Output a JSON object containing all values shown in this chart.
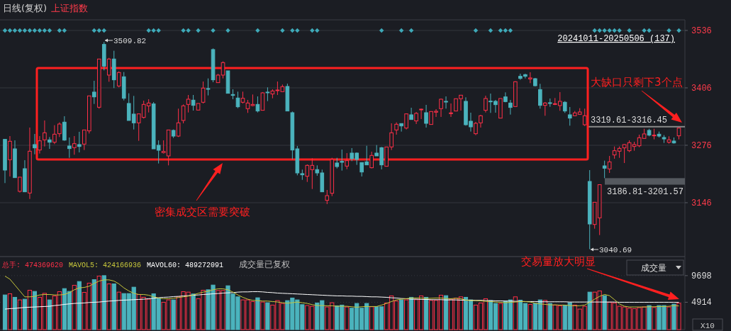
{
  "chart_data": [
    {
      "type": "candlestick",
      "title": "日线(复权)",
      "subtitle": "上证指数",
      "categories": [
        null,
        null,
        null,
        null,
        null,
        null,
        null,
        null,
        null,
        null,
        null,
        null,
        null,
        null,
        null,
        null,
        null,
        null,
        null,
        null,
        null,
        null,
        null,
        null,
        null,
        null,
        null,
        null,
        null,
        null,
        null,
        null,
        null,
        null,
        null,
        null,
        null,
        null,
        null,
        null,
        null,
        null,
        null,
        null,
        null,
        null,
        null,
        null,
        null,
        null,
        null,
        null,
        null,
        null,
        null,
        null,
        null,
        null,
        null,
        null,
        null,
        null,
        null,
        null,
        null,
        null,
        null,
        null,
        null,
        null,
        null,
        null,
        null,
        null,
        null,
        null,
        null,
        null,
        null,
        null,
        null,
        null,
        null,
        null,
        null,
        null,
        null,
        null,
        null,
        null,
        null,
        null,
        null,
        null,
        null,
        null,
        null,
        null,
        null,
        null,
        null,
        null,
        null,
        null,
        null,
        null,
        null,
        null,
        null,
        null,
        null,
        null,
        null,
        null,
        null,
        null,
        null,
        null,
        null,
        null,
        null,
        null,
        null,
        null,
        null,
        null,
        null,
        null,
        null,
        null,
        null,
        null,
        null,
        null,
        null,
        null,
        null
      ],
      "ohlc": [
        [
          3289.4,
          3289.4,
          3190.4,
          3219.8
        ],
        [
          3243.3,
          3296.8,
          3205.4,
          3285.1
        ],
        [
          3267.9,
          3287.2,
          3202.7,
          3202.7
        ],
        [
          3171.7,
          3203.8,
          3169.0,
          3203.8
        ],
        [
          3223.0,
          3242.3,
          3170.6,
          3170.6
        ],
        [
          3167.9,
          3316.1,
          3154.5,
          3262.6
        ],
        [
          3277.6,
          3301.7,
          3255.6,
          3270.1
        ],
        [
          3265.3,
          3296.8,
          3257.3,
          3286.1
        ],
        [
          3288.3,
          3332.2,
          3273.3,
          3304.3
        ],
        [
          3288.3,
          3294.7,
          3267.9,
          3282.9
        ],
        [
          3282.9,
          3321.5,
          3278.7,
          3301.1
        ],
        [
          3302.2,
          3327.9,
          3294.7,
          3324.1
        ],
        [
          3328.4,
          3341.8,
          3286.1,
          3287.7
        ],
        [
          3274.4,
          3293.6,
          3247.6,
          3268.5
        ],
        [
          3270.6,
          3296.8,
          3254.6,
          3279.7
        ],
        [
          3277.6,
          3306.5,
          3259.9,
          3273.3
        ],
        [
          3278.7,
          3310.7,
          3265.3,
          3310.7
        ],
        [
          3308.6,
          3387.8,
          3302.7,
          3387.8
        ],
        [
          3396.4,
          3422.0,
          3369.6,
          3385.6
        ],
        [
          3362.1,
          3471.3,
          3358.9,
          3471.3
        ],
        [
          3504.4,
          3509.82,
          3445.6,
          3455.2
        ],
        [
          3434.9,
          3473.9,
          3419.9,
          3471.3
        ],
        [
          3471.3,
          3490.0,
          3405.5,
          3424.2
        ],
        [
          3410.3,
          3443.4,
          3407.1,
          3440.8
        ],
        [
          3431.1,
          3441.8,
          3377.6,
          3382.4
        ],
        [
          3370.7,
          3393.7,
          3332.2,
          3332.2
        ],
        [
          3346.6,
          3387.8,
          3311.8,
          3326.8
        ],
        [
          3326.8,
          3347.1,
          3286.1,
          3347.1
        ],
        [
          3339.1,
          3377.1,
          3336.4,
          3368.5
        ],
        [
          3365.3,
          3380.3,
          3350.3,
          3371.7
        ],
        [
          3369.6,
          3373.9,
          3267.9,
          3267.9
        ],
        [
          3276.0,
          3287.2,
          3234.8,
          3264.7
        ],
        [
          3259.4,
          3287.2,
          3257.3,
          3262.1
        ],
        [
          3251.9,
          3310.7,
          3230.5,
          3310.7
        ],
        [
          3309.7,
          3311.8,
          3292.6,
          3296.8
        ],
        [
          3296.8,
          3358.9,
          3294.7,
          3326.8
        ],
        [
          3332.2,
          3368.5,
          3325.7,
          3365.3
        ],
        [
          3368.5,
          3389.9,
          3350.3,
          3380.3
        ],
        [
          3378.2,
          3389.9,
          3354.6,
          3366.4
        ],
        [
          3355.7,
          3370.7,
          3355.7,
          3370.7
        ],
        [
          3373.4,
          3420.4,
          3370.7,
          3405.5
        ],
        [
          3404.4,
          3427.4,
          3388.9,
          3402.8
        ],
        [
          3492.7,
          3495.3,
          3418.8,
          3424.2
        ],
        [
          3417.8,
          3437.5,
          3417.8,
          3434.9
        ],
        [
          3434.9,
          3465.9,
          3427.4,
          3463.2
        ],
        [
          3444.5,
          3444.5,
          3393.7,
          3393.7
        ],
        [
          3391.0,
          3402.8,
          3380.3,
          3388.9
        ],
        [
          3383.0,
          3397.4,
          3360.0,
          3363.2
        ],
        [
          3373.4,
          3397.4,
          3370.7,
          3382.4
        ],
        [
          3358.9,
          3378.7,
          3349.3,
          3371.7
        ],
        [
          3365.9,
          3391.0,
          3364.3,
          3368.5
        ],
        [
          3368.5,
          3386.7,
          3350.3,
          3353.6
        ],
        [
          3355.2,
          3396.4,
          3355.2,
          3394.7
        ],
        [
          3396.4,
          3407.1,
          3376.0,
          3395.3
        ],
        [
          3392.1,
          3402.8,
          3382.4,
          3399.0
        ],
        [
          3400.1,
          3420.4,
          3389.9,
          3401.2
        ],
        [
          3397.4,
          3413.5,
          3397.4,
          3408.7
        ],
        [
          3409.2,
          3415.6,
          3353.6,
          3353.6
        ],
        [
          3349.8,
          3352.5,
          3243.9,
          3265.3
        ],
        [
          3267.9,
          3274.4,
          3208.0,
          3213.4
        ],
        [
          3211.8,
          3220.9,
          3197.7,
          3209.1
        ],
        [
          3205.9,
          3232.6,
          3193.0,
          3230.5
        ],
        [
          3220.9,
          3246.5,
          3177.0,
          3230.5
        ],
        [
          3220.9,
          3230.5,
          3207.0,
          3213.4
        ],
        [
          3213.4,
          3220.9,
          3170.6,
          3170.6
        ],
        [
          3151.3,
          3174.9,
          3142.8,
          3162.0
        ],
        [
          3167.4,
          3247.6,
          3161.0,
          3243.9
        ],
        [
          3235.9,
          3247.6,
          3223.6,
          3227.8
        ],
        [
          3239.6,
          3266.3,
          3218.7,
          3237.5
        ],
        [
          3228.9,
          3258.3,
          3221.9,
          3241.2
        ],
        [
          3258.3,
          3269.6,
          3240.1,
          3245.5
        ],
        [
          3258.3,
          3259.9,
          3231.6,
          3243.9
        ],
        [
          3236.9,
          3236.9,
          3205.4,
          3215.5
        ],
        [
          3238.5,
          3274.9,
          3231.6,
          3231.6
        ],
        [
          3225.2,
          3261.5,
          3223.6,
          3253.0
        ],
        [
          3258.3,
          3276.5,
          3251.9,
          3251.9
        ],
        [
          3270.6,
          3272.2,
          3221.4,
          3231.6
        ],
        [
          3228.4,
          3272.2,
          3228.4,
          3272.2
        ],
        [
          3272.2,
          3325.7,
          3265.3,
          3304.3
        ],
        [
          3310.7,
          3327.9,
          3300.0,
          3323.6
        ],
        [
          3325.2,
          3325.2,
          3307.0,
          3319.8
        ],
        [
          3315.0,
          3348.2,
          3311.8,
          3347.1
        ],
        [
          3345.0,
          3361.0,
          3334.3,
          3334.3
        ],
        [
          3331.1,
          3351.4,
          3324.1,
          3348.2
        ],
        [
          3356.8,
          3358.9,
          3335.4,
          3357.8
        ],
        [
          3349.8,
          3367.5,
          3316.1,
          3325.7
        ],
        [
          3323.1,
          3352.5,
          3323.1,
          3352.5
        ],
        [
          3350.9,
          3357.8,
          3340.2,
          3353.0
        ],
        [
          3358.9,
          3381.9,
          3340.2,
          3380.3
        ],
        [
          3375.5,
          3386.7,
          3358.9,
          3374.4
        ],
        [
          3347.7,
          3370.7,
          3340.2,
          3349.3
        ],
        [
          3353.6,
          3381.4,
          3353.6,
          3381.4
        ],
        [
          3381.4,
          3389.4,
          3354.6,
          3389.4
        ],
        [
          3375.5,
          3384.6,
          3320.4,
          3322.5
        ],
        [
          3330.5,
          3349.8,
          3307.0,
          3317.7
        ],
        [
          3302.2,
          3329.0,
          3299.0,
          3325.7
        ],
        [
          3326.8,
          3345.0,
          3316.1,
          3342.9
        ],
        [
          3355.2,
          3388.3,
          3350.3,
          3381.9
        ],
        [
          3376.0,
          3393.1,
          3349.3,
          3374.4
        ],
        [
          3375.5,
          3378.7,
          3349.8,
          3368.0
        ],
        [
          3337.5,
          3381.9,
          3337.5,
          3381.9
        ],
        [
          3385.6,
          3395.8,
          3373.4,
          3374.9
        ],
        [
          3371.7,
          3378.7,
          3345.5,
          3361.6
        ],
        [
          3363.7,
          3420.9,
          3363.7,
          3419.9
        ],
        [
          3432.2,
          3438.1,
          3424.2,
          3427.4
        ],
        [
          3435.9,
          3438.1,
          3427.4,
          3432.2
        ],
        [
          3426.3,
          3441.3,
          3416.7,
          3428.5
        ],
        [
          3426.8,
          3428.5,
          3409.2,
          3410.8
        ],
        [
          3402.2,
          3415.1,
          3358.9,
          3366.4
        ],
        [
          3366.4,
          3373.9,
          3342.8,
          3371.7
        ],
        [
          3372.3,
          3381.9,
          3363.2,
          3370.7
        ],
        [
          3368.5,
          3383.0,
          3367.0,
          3370.1
        ],
        [
          3365.9,
          3396.4,
          3354.1,
          3375.5
        ],
        [
          3373.4,
          3376.0,
          3349.3,
          3353.6
        ],
        [
          3345.0,
          3362.6,
          3320.4,
          3337.5
        ],
        [
          3342.9,
          3353.6,
          3341.8,
          3349.3
        ],
        [
          3346.1,
          3360.0,
          3345.0,
          3351.4
        ],
        [
          3322.5,
          3358.9,
          3319.61,
          3342.9
        ],
        [
          3194.1,
          3219.8,
          3040.69,
          3097.8
        ],
        [
          3096.7,
          3147.0,
          3087.1,
          3147.0
        ],
        [
          3111.7,
          3186.81,
          3072.7,
          3186.81
        ],
        [
          3229.4,
          3241.2,
          3201.57,
          3224.1
        ],
        [
          3222.5,
          3251.9,
          3213.4,
          3238.5
        ],
        [
          3254.1,
          3273.3,
          3245.5,
          3263.7
        ],
        [
          3262.6,
          3273.3,
          3247.6,
          3269.0
        ],
        [
          3270.1,
          3278.7,
          3235.8,
          3277.6
        ],
        [
          3263.7,
          3287.2,
          3260.5,
          3281.9
        ],
        [
          3273.3,
          3284.0,
          3263.7,
          3277.6
        ],
        [
          3274.9,
          3300.0,
          3271.7,
          3293.1
        ],
        [
          3291.5,
          3313.4,
          3291.5,
          3301.7
        ],
        [
          3309.7,
          3313.4,
          3296.3,
          3299.0
        ],
        [
          3297.9,
          3313.4,
          3289.4,
          3299.0
        ],
        [
          3301.1,
          3307.0,
          3293.6,
          3296.8
        ],
        [
          3293.6,
          3299.0,
          3281.3,
          3290.4
        ],
        [
          3282.9,
          3296.3,
          3279.7,
          3288.3
        ],
        [
          3285.6,
          3293.6,
          3279.7,
          3281.3
        ],
        [
          3297.4,
          3316.45,
          3289.4,
          3315.0
        ]
      ],
      "colors": [
        "#4bb3bd",
        "#ff3048",
        "#4bb3bd",
        "#ff3048",
        "#4bb3bd",
        "#ff3048",
        "#4bb3bd",
        "#ff3048",
        "#ff3048",
        "#4bb3bd",
        "#ff3048",
        "#ff3048",
        "#4bb3bd",
        "#4bb3bd",
        "#ff3048",
        "#4bb3bd",
        "#ff3048",
        "#ff3048",
        "#4bb3bd",
        "#ff3048",
        "#4bb3bd",
        "#ff3048",
        "#4bb3bd",
        "#ff3048",
        "#4bb3bd",
        "#4bb3bd",
        "#4bb3bd",
        "#ff3048",
        "#ff3048",
        "#ff3048",
        "#4bb3bd",
        "#4bb3bd",
        "#ff3048",
        "#ff3048",
        "#4bb3bd",
        "#ff3048",
        "#ff3048",
        "#ff3048",
        "#4bb3bd",
        "#ff3048",
        "#ff3048",
        "#4bb3bd",
        "#4bb3bd",
        "#ff3048",
        "#ff3048",
        "#4bb3bd",
        "#4bb3bd",
        "#4bb3bd",
        "#ff3048",
        "#ff3048",
        "#ff3048",
        "#4bb3bd",
        "#ff3048",
        "#4bb3bd",
        "#ff3048",
        "#ff3048",
        "#ff3048",
        "#4bb3bd",
        "#4bb3bd",
        "#4bb3bd",
        "#4bb3bd",
        "#ff3048",
        "#ff3048",
        "#4bb3bd",
        "#4bb3bd",
        "#ff3048",
        "#ff3048",
        "#4bb3bd",
        "#4bb3bd",
        "#ff3048",
        "#4bb3bd",
        "#4bb3bd",
        "#4bb3bd",
        "#4bb3bd",
        "#ff3048",
        "#4bb3bd",
        "#4bb3bd",
        "#ff3048",
        "#ff3048",
        "#ff3048",
        "#4bb3bd",
        "#ff3048",
        "#4bb3bd",
        "#ff3048",
        "#ff3048",
        "#4bb3bd",
        "#ff3048",
        "#ff3048",
        "#ff3048",
        "#4bb3bd",
        "#ff3048",
        "#ff3048",
        "#ff3048",
        "#4bb3bd",
        "#4bb3bd",
        "#ff3048",
        "#ff3048",
        "#ff3048",
        "#4bb3bd",
        "#4bb3bd",
        "#ff3048",
        "#4bb3bd",
        "#4bb3bd",
        "#ff3048",
        "#4bb3bd",
        "#4bb3bd",
        "#ff3048",
        "#4bb3bd",
        "#4bb3bd",
        "#ff3048",
        "#4bb3bd",
        "#ff3048",
        "#ff3048",
        "#4bb3bd",
        "#4bb3bd",
        "#ff3048",
        "#ff3048",
        "#ff3048",
        "#4bb3bd",
        "#ff3048",
        "#ff3048",
        "#4bb3bd",
        "#ff3048",
        "#ff3048",
        "#ff3048",
        "#ff3048",
        "#ff3048",
        "#ff3048",
        "#ff3048",
        "#ff3048",
        "#4bb3bd",
        "#ff3048",
        "#4bb3bd",
        "#4bb3bd",
        "#ff3048",
        "#4bb3bd",
        "#ff3048"
      ],
      "ylim": [
        3024,
        3560
      ],
      "yticks": [
        3146,
        3276,
        3406,
        3536
      ],
      "grid": "y",
      "series": [
        {
          "type": "scatter",
          "marker": "diamond",
          "color": "#3ea9b8",
          "values": [
            3536,
            3536,
            3536,
            3536,
            3536,
            3536,
            3536,
            3536,
            3536,
            3536,
            null,
            3536,
            3536,
            null,
            null,
            null,
            null,
            null,
            3536,
            3536,
            3536,
            null,
            null,
            null,
            null,
            null,
            null,
            null,
            null,
            3536,
            3536,
            3536,
            null,
            null,
            null,
            null,
            3536,
            3536,
            null,
            3536,
            null,
            null,
            3536,
            null,
            null,
            3536,
            null,
            null,
            null,
            null,
            null,
            3536,
            null,
            null,
            null,
            null,
            3536,
            null,
            3536,
            3536,
            null,
            null,
            3536,
            3536,
            null,
            null,
            null,
            null,
            null,
            null,
            null,
            null,
            null,
            null,
            null,
            null,
            3536,
            null,
            null,
            null,
            3536,
            null,
            3536,
            null,
            null,
            null,
            null,
            null,
            null,
            null,
            null,
            null,
            null,
            null,
            null,
            3536,
            null,
            null,
            3536,
            null,
            3536,
            3536,
            3536,
            null,
            null,
            null,
            null,
            null,
            null,
            null,
            null,
            null,
            null,
            null,
            null,
            null,
            null,
            null,
            null,
            3536,
            3536,
            3536,
            3536,
            3536,
            3536,
            null,
            3536,
            null,
            null,
            3536,
            3536,
            null,
            null,
            null,
            3536,
            null,
            3536
          ]
        }
      ],
      "bands": [
        {
          "axis": "y",
          "from": 3316.45,
          "to": 3319.61,
          "label": "3319.61-3316.45",
          "color": "#8a8a8a"
        },
        {
          "axis": "y",
          "from": 3186.81,
          "to": 3201.57,
          "label": "3186.81-3201.57",
          "color": "#55595f"
        }
      ],
      "annotations": [
        "20241011-20250506 (137)",
        "大缺口只剩下3个点",
        "密集成交区需要突破",
        "3509.82",
        "3040.69"
      ]
    },
    {
      "type": "bar",
      "categories": [
        null,
        null,
        null,
        null,
        null,
        null,
        null,
        null,
        null,
        null,
        null,
        null,
        null,
        null,
        null,
        null,
        null,
        null,
        null,
        null,
        null,
        null,
        null,
        null,
        null,
        null,
        null,
        null,
        null,
        null,
        null,
        null,
        null,
        null,
        null,
        null,
        null,
        null,
        null,
        null,
        null,
        null,
        null,
        null,
        null,
        null,
        null,
        null,
        null,
        null,
        null,
        null,
        null,
        null,
        null,
        null,
        null,
        null,
        null,
        null,
        null,
        null,
        null,
        null,
        null,
        null,
        null,
        null,
        null,
        null,
        null,
        null,
        null,
        null,
        null,
        null,
        null,
        null,
        null,
        null,
        null,
        null,
        null,
        null,
        null,
        null,
        null,
        null,
        null,
        null,
        null,
        null,
        null,
        null,
        null,
        null,
        null,
        null,
        null,
        null,
        null,
        null,
        null,
        null,
        null,
        null,
        null,
        null,
        null,
        null,
        null,
        null,
        null,
        null,
        null,
        null,
        null,
        null,
        null,
        null,
        null,
        null,
        null,
        null,
        null,
        null,
        null,
        null,
        null,
        null,
        null,
        null,
        null,
        null,
        null,
        null,
        null
      ],
      "ylim": [
        0,
        13120
      ],
      "yticks": [
        4914,
        9698
      ],
      "grid": "y",
      "legend": "top left",
      "series": [
        {
          "name": "总手: 474369620",
          "color": "#ff3048",
          "colors": [
            "#4bb3bd",
            "#ff3048",
            "#4bb3bd",
            "#ff3048",
            "#4bb3bd",
            "#ff3048",
            "#4bb3bd",
            "#ff3048",
            "#ff3048",
            "#4bb3bd",
            "#ff3048",
            "#ff3048",
            "#4bb3bd",
            "#4bb3bd",
            "#ff3048",
            "#4bb3bd",
            "#ff3048",
            "#ff3048",
            "#4bb3bd",
            "#ff3048",
            "#4bb3bd",
            "#ff3048",
            "#4bb3bd",
            "#ff3048",
            "#4bb3bd",
            "#4bb3bd",
            "#4bb3bd",
            "#ff3048",
            "#ff3048",
            "#ff3048",
            "#4bb3bd",
            "#4bb3bd",
            "#ff3048",
            "#ff3048",
            "#4bb3bd",
            "#ff3048",
            "#ff3048",
            "#ff3048",
            "#4bb3bd",
            "#ff3048",
            "#ff3048",
            "#4bb3bd",
            "#4bb3bd",
            "#ff3048",
            "#ff3048",
            "#4bb3bd",
            "#4bb3bd",
            "#4bb3bd",
            "#ff3048",
            "#ff3048",
            "#ff3048",
            "#4bb3bd",
            "#ff3048",
            "#4bb3bd",
            "#ff3048",
            "#ff3048",
            "#ff3048",
            "#4bb3bd",
            "#4bb3bd",
            "#4bb3bd",
            "#4bb3bd",
            "#ff3048",
            "#ff3048",
            "#4bb3bd",
            "#4bb3bd",
            "#ff3048",
            "#ff3048",
            "#4bb3bd",
            "#4bb3bd",
            "#ff3048",
            "#4bb3bd",
            "#4bb3bd",
            "#4bb3bd",
            "#4bb3bd",
            "#ff3048",
            "#4bb3bd",
            "#4bb3bd",
            "#ff3048",
            "#ff3048",
            "#ff3048",
            "#4bb3bd",
            "#ff3048",
            "#4bb3bd",
            "#ff3048",
            "#ff3048",
            "#4bb3bd",
            "#ff3048",
            "#ff3048",
            "#ff3048",
            "#4bb3bd",
            "#ff3048",
            "#ff3048",
            "#ff3048",
            "#4bb3bd",
            "#4bb3bd",
            "#ff3048",
            "#ff3048",
            "#ff3048",
            "#4bb3bd",
            "#4bb3bd",
            "#ff3048",
            "#4bb3bd",
            "#4bb3bd",
            "#ff3048",
            "#4bb3bd",
            "#4bb3bd",
            "#ff3048",
            "#4bb3bd",
            "#4bb3bd",
            "#ff3048",
            "#4bb3bd",
            "#ff3048",
            "#ff3048",
            "#4bb3bd",
            "#4bb3bd",
            "#ff3048",
            "#ff3048",
            "#ff3048",
            "#4bb3bd",
            "#ff3048",
            "#ff3048",
            "#4bb3bd",
            "#ff3048",
            "#ff3048",
            "#ff3048",
            "#ff3048",
            "#ff3048",
            "#ff3048",
            "#ff3048",
            "#ff3048",
            "#4bb3bd",
            "#ff3048",
            "#4bb3bd",
            "#4bb3bd",
            "#ff3048",
            "#4bb3bd",
            "#ff3048"
          ],
          "values": [
            6224,
            6436,
            5801,
            5335,
            5462,
            7071,
            6859,
            5801,
            6520,
            5335,
            6055,
            6817,
            7367,
            6859,
            7960,
            8637,
            6690,
            8341,
            8976,
            9611,
            9696,
            8214,
            8214,
            6732,
            6478,
            6478,
            7621,
            6309,
            5801,
            5462,
            6436,
            5674,
            4911,
            5335,
            5335,
            5885,
            6817,
            6732,
            6393,
            5547,
            7071,
            7155,
            8002,
            7028,
            7028,
            7875,
            6393,
            5885,
            5335,
            5335,
            5038,
            5716,
            4954,
            4827,
            4403,
            5208,
            4700,
            5208,
            5674,
            5335,
            4488,
            4319,
            4192,
            4784,
            5208,
            4065,
            4827,
            4276,
            4403,
            4065,
            3853,
            4700,
            3853,
            4700,
            4107,
            4107,
            4107,
            4784,
            6055,
            5123,
            5335,
            5335,
            5801,
            5377,
            6055,
            5801,
            5250,
            5250,
            6182,
            6097,
            5462,
            5631,
            5885,
            5801,
            5335,
            4403,
            4784,
            5547,
            5208,
            4700,
            4700,
            5123,
            5335,
            5885,
            5293,
            4700,
            4530,
            4700,
            5335,
            5250,
            4700,
            4403,
            4276,
            4361,
            4827,
            4403,
            3684,
            4192,
            6732,
            6732,
            6944,
            6097,
            4911,
            4784,
            4192,
            4065,
            3853,
            3768,
            3938,
            4065,
            4319,
            3980,
            4319,
            4319,
            4065,
            4573,
            4744
          ]
        },
        {
          "type": "line",
          "name": "MAVOL5: 424166936",
          "color": "#c8c83c",
          "values": [
            9611,
            9061,
            8002,
            6944,
            5885,
            5885,
            5970,
            6224,
            6309,
            6309,
            6224,
            6224,
            6309,
            6647,
            7155,
            7494,
            7579,
            7791,
            8299,
            8722,
            8934,
            8934,
            8722,
            8214,
            7494,
            6944,
            6520,
            6309,
            6309,
            6182,
            5885,
            5674,
            5547,
            5547,
            5631,
            5758,
            5885,
            6012,
            6224,
            6520,
            6732,
            6901,
            7155,
            7325,
            7325,
            7155,
            6732,
            6224,
            5801,
            5462,
            5250,
            5208,
            5123,
            5123,
            5038,
            4954,
            4827,
            4742,
            4827,
            4954,
            4827,
            4700,
            4488,
            4319,
            4319,
            4276,
            4276,
            4192,
            4192,
            4192,
            4107,
            4022,
            4107,
            4149,
            4149,
            4149,
            4403,
            4700,
            5038,
            5335,
            5462,
            5547,
            5674,
            5674,
            5674,
            5589,
            5631,
            5674,
            5674,
            5589,
            5547,
            5631,
            5547,
            5293,
            5208,
            5208,
            5165,
            5081,
            5038,
            4954,
            4911,
            4827,
            4911,
            4954,
            5038,
            5038,
            4954,
            4742,
            4615,
            4530,
            4446,
            4446,
            4403,
            4403,
            4319,
            4276,
            4276,
            4403,
            4911,
            5462,
            5970,
            6309,
            6097,
            5377,
            4615,
            4192,
            4065,
            4065,
            4065,
            4065,
            4107,
            4107,
            4149,
            4149,
            4192,
            4319,
            4242
          ]
        },
        {
          "type": "line",
          "name": "MAVOL60: 489272091",
          "color": "#ffffff",
          "values": [
            3684,
            3768,
            3811,
            3895,
            3980,
            4022,
            4065,
            4107,
            4149,
            4192,
            4319,
            4403,
            4530,
            4615,
            4700,
            4742,
            4784,
            4869,
            4911,
            4954,
            5038,
            5123,
            5165,
            5250,
            5293,
            5335,
            5377,
            5420,
            5462,
            5547,
            5631,
            5716,
            5801,
            5843,
            5928,
            5970,
            6055,
            6097,
            6182,
            6224,
            6309,
            6351,
            6436,
            6478,
            6563,
            6605,
            6647,
            6732,
            6774,
            6774,
            6817,
            6817,
            6774,
            6690,
            6647,
            6563,
            6520,
            6478,
            6436,
            6393,
            6351,
            6309,
            6266,
            6224,
            6182,
            6139,
            6097,
            6055,
            6055,
            6012,
            6012,
            5970,
            5970,
            5928,
            5885,
            5885,
            5843,
            5801,
            5716,
            5674,
            5589,
            5547,
            5462,
            5462,
            5420,
            5420,
            5377,
            5377,
            5377,
            5335,
            5335,
            5335,
            5293,
            5293,
            5293,
            5250,
            5250,
            5208,
            5208,
            5165,
            5165,
            5123,
            5123,
            5081,
            5081,
            5038,
            5038,
            5038,
            4996,
            4996,
            4996,
            4996,
            4996,
            4996,
            4954,
            4954,
            4954,
            4954,
            4954,
            4954,
            4954,
            4954,
            4954,
            4954,
            4911,
            4911,
            4911,
            4911,
            4911,
            4911,
            4911,
            4911,
            4911,
            4911,
            4911,
            4911,
            4893
          ]
        }
      ],
      "annotations": [
        "成交量已复权",
        "交易量放大明显",
        "成交量",
        "X10"
      ]
    }
  ]
}
